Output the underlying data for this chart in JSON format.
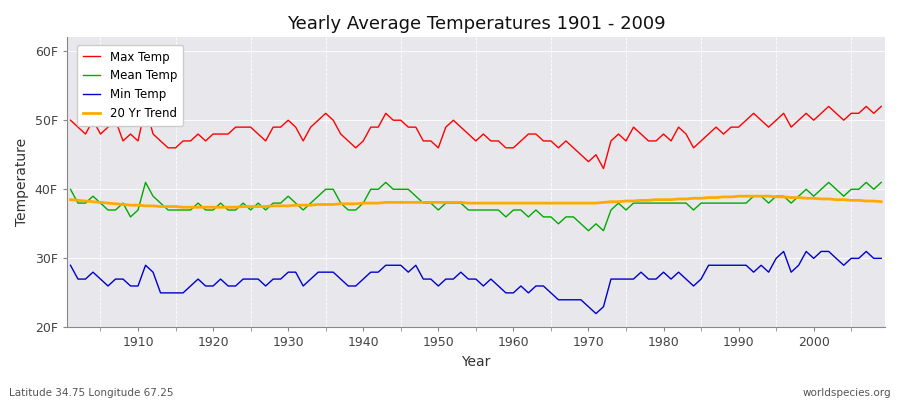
{
  "title": "Yearly Average Temperatures 1901 - 2009",
  "xlabel": "Year",
  "ylabel": "Temperature",
  "start_year": 1901,
  "end_year": 2009,
  "ylim": [
    20,
    62
  ],
  "yticks": [
    20,
    30,
    40,
    50,
    60
  ],
  "ytick_labels": [
    "20F",
    "30F",
    "40F",
    "50F",
    "60F"
  ],
  "fig_bg_color": "#ffffff",
  "plot_bg_color": "#e8e8ec",
  "grid_color": "#ffffff",
  "max_temp_color": "#ff0000",
  "mean_temp_color": "#00aa00",
  "min_temp_color": "#0000cc",
  "trend_color": "#ffaa00",
  "legend_labels": [
    "Max Temp",
    "Mean Temp",
    "Min Temp",
    "20 Yr Trend"
  ],
  "footer_left": "Latitude 34.75 Longitude 67.25",
  "footer_right": "worldspecies.org",
  "max_temps": [
    50,
    49,
    48,
    50,
    48,
    49,
    50,
    47,
    48,
    47,
    52,
    48,
    47,
    46,
    46,
    47,
    47,
    48,
    47,
    48,
    48,
    48,
    49,
    49,
    49,
    48,
    47,
    49,
    49,
    50,
    49,
    47,
    49,
    50,
    51,
    50,
    48,
    47,
    46,
    47,
    49,
    49,
    51,
    50,
    50,
    49,
    49,
    47,
    47,
    46,
    49,
    50,
    49,
    48,
    47,
    48,
    47,
    47,
    46,
    46,
    47,
    48,
    48,
    47,
    47,
    46,
    47,
    46,
    45,
    44,
    45,
    43,
    47,
    48,
    47,
    49,
    48,
    47,
    47,
    48,
    47,
    49,
    48,
    46,
    47,
    48,
    49,
    48,
    49,
    49,
    50,
    51,
    50,
    49,
    50,
    51,
    49,
    50,
    51,
    50,
    51,
    52,
    51,
    50,
    51,
    51,
    52,
    51,
    52
  ],
  "mean_temps": [
    40,
    38,
    38,
    39,
    38,
    37,
    37,
    38,
    36,
    37,
    41,
    39,
    38,
    37,
    37,
    37,
    37,
    38,
    37,
    37,
    38,
    37,
    37,
    38,
    37,
    38,
    37,
    38,
    38,
    39,
    38,
    37,
    38,
    39,
    40,
    40,
    38,
    37,
    37,
    38,
    40,
    40,
    41,
    40,
    40,
    40,
    39,
    38,
    38,
    37,
    38,
    38,
    38,
    37,
    37,
    37,
    37,
    37,
    36,
    37,
    37,
    36,
    37,
    36,
    36,
    35,
    36,
    36,
    35,
    34,
    35,
    34,
    37,
    38,
    37,
    38,
    38,
    38,
    38,
    38,
    38,
    38,
    38,
    37,
    38,
    38,
    38,
    38,
    38,
    38,
    38,
    39,
    39,
    38,
    39,
    39,
    38,
    39,
    40,
    39,
    40,
    41,
    40,
    39,
    40,
    40,
    41,
    40,
    41
  ],
  "min_temps": [
    29,
    27,
    27,
    28,
    27,
    26,
    27,
    27,
    26,
    26,
    29,
    28,
    25,
    25,
    25,
    25,
    26,
    27,
    26,
    26,
    27,
    26,
    26,
    27,
    27,
    27,
    26,
    27,
    27,
    28,
    28,
    26,
    27,
    28,
    28,
    28,
    27,
    26,
    26,
    27,
    28,
    28,
    29,
    29,
    29,
    28,
    29,
    27,
    27,
    26,
    27,
    27,
    28,
    27,
    27,
    26,
    27,
    26,
    25,
    25,
    26,
    25,
    26,
    26,
    25,
    24,
    24,
    24,
    24,
    23,
    22,
    23,
    27,
    27,
    27,
    27,
    28,
    27,
    27,
    28,
    27,
    28,
    27,
    26,
    27,
    29,
    29,
    29,
    29,
    29,
    29,
    28,
    29,
    28,
    30,
    31,
    28,
    29,
    31,
    30,
    31,
    31,
    30,
    29,
    30,
    30,
    31,
    30,
    30
  ],
  "trend_values": [
    38.5,
    38.4,
    38.3,
    38.2,
    38.1,
    38.0,
    37.9,
    37.8,
    37.7,
    37.7,
    37.6,
    37.6,
    37.5,
    37.5,
    37.5,
    37.4,
    37.4,
    37.4,
    37.4,
    37.4,
    37.4,
    37.4,
    37.4,
    37.5,
    37.5,
    37.5,
    37.5,
    37.6,
    37.6,
    37.6,
    37.7,
    37.7,
    37.7,
    37.8,
    37.8,
    37.8,
    37.9,
    37.9,
    37.9,
    38.0,
    38.0,
    38.0,
    38.1,
    38.1,
    38.1,
    38.1,
    38.1,
    38.1,
    38.1,
    38.1,
    38.1,
    38.1,
    38.1,
    38.0,
    38.0,
    38.0,
    38.0,
    38.0,
    38.0,
    38.0,
    38.0,
    38.0,
    38.0,
    38.0,
    38.0,
    38.0,
    38.0,
    38.0,
    38.0,
    38.0,
    38.0,
    38.1,
    38.2,
    38.2,
    38.3,
    38.3,
    38.4,
    38.4,
    38.5,
    38.5,
    38.5,
    38.6,
    38.6,
    38.7,
    38.7,
    38.8,
    38.8,
    38.9,
    38.9,
    39.0,
    39.0,
    39.0,
    39.0,
    39.0,
    38.9,
    38.9,
    38.8,
    38.8,
    38.7,
    38.7,
    38.6,
    38.6,
    38.5,
    38.5,
    38.4,
    38.4,
    38.3,
    38.3,
    38.2
  ]
}
